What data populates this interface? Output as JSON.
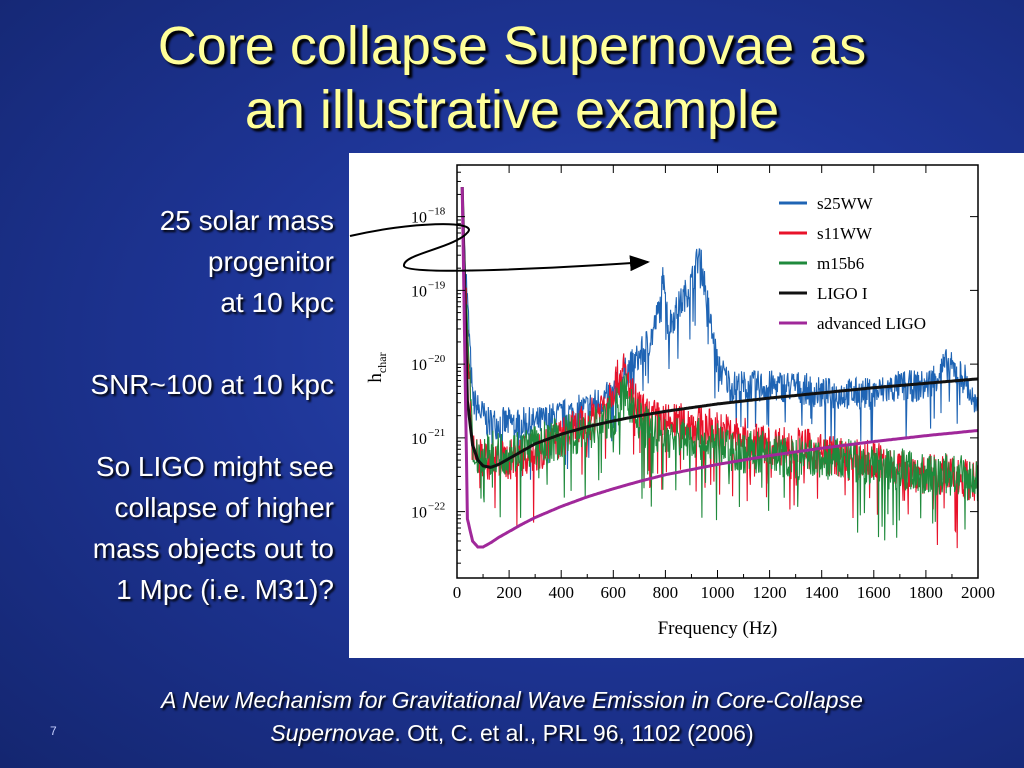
{
  "slide": {
    "title_line1": "Core collapse Supernovae as",
    "title_line2": "an illustrative example",
    "side_text": {
      "line1": "25 solar mass",
      "line2": "progenitor",
      "line3": "at 10 kpc",
      "snr": "SNR~100 at 10 kpc",
      "conclusion1": "So LIGO might see",
      "conclusion2": "collapse of higher",
      "conclusion3": "mass objects out to",
      "conclusion4": "1 Mpc (i.e. M31)?"
    },
    "citation_italic1": "A New Mechanism for Gravitational Wave Emission in Core-Collapse",
    "citation_italic2": "Supernovae",
    "citation_rest": ". Ott, C. et al., PRL 96, 1102 (2006)",
    "slide_number": "7"
  },
  "chart_data": {
    "type": "line",
    "xlabel": "Frequency (Hz)",
    "ylabel_main": "h",
    "ylabel_sub": "char",
    "xlim": [
      0,
      2000
    ],
    "ylim_log10": [
      -22.9,
      -17.3
    ],
    "log_y": true,
    "x_ticks": [
      0,
      200,
      400,
      600,
      800,
      1000,
      1200,
      1400,
      1600,
      1800,
      2000
    ],
    "y_ticks": [
      {
        "label_base": "10",
        "label_exp": "−18",
        "log": -18
      },
      {
        "label_base": "10",
        "label_exp": "−19",
        "log": -19
      },
      {
        "label_base": "10",
        "label_exp": "−20",
        "log": -20
      },
      {
        "label_base": "10",
        "label_exp": "−21",
        "log": -21
      },
      {
        "label_base": "10",
        "label_exp": "−22",
        "log": -22
      }
    ],
    "legend_position": "top-right",
    "series": [
      {
        "name": "s25WW",
        "color": "#1f64b4",
        "noisy": true,
        "noise": 0.22,
        "x": [
          20,
          60,
          120,
          200,
          300,
          400,
          500,
          600,
          650,
          700,
          750,
          780,
          795,
          810,
          840,
          870,
          900,
          930,
          950,
          980,
          1000,
          1050,
          1100,
          1200,
          1300,
          1400,
          1500,
          1600,
          1700,
          1800,
          1880,
          1950,
          2000
        ],
        "log_h": [
          -17.8,
          -20.5,
          -20.8,
          -20.8,
          -20.8,
          -20.7,
          -20.6,
          -20.4,
          -20.1,
          -19.9,
          -19.6,
          -19.2,
          -18.7,
          -19.5,
          -19.3,
          -19.1,
          -18.9,
          -18.5,
          -18.9,
          -19.6,
          -20.0,
          -20.3,
          -20.3,
          -20.3,
          -20.3,
          -20.4,
          -20.4,
          -20.4,
          -20.3,
          -20.3,
          -20.0,
          -20.2,
          -20.7
        ]
      },
      {
        "name": "s11WW",
        "color": "#e8122a",
        "noisy": true,
        "noise": 0.28,
        "x": [
          20,
          60,
          120,
          200,
          300,
          400,
          500,
          550,
          600,
          640,
          680,
          720,
          800,
          900,
          1000,
          1100,
          1200,
          1300,
          1400,
          1500,
          1600,
          1700,
          1800,
          1900,
          2000
        ],
        "log_h": [
          -17.8,
          -21.2,
          -21.3,
          -21.3,
          -21.2,
          -21.0,
          -20.8,
          -20.6,
          -20.3,
          -20.1,
          -20.5,
          -20.7,
          -20.8,
          -20.8,
          -20.9,
          -21.0,
          -21.1,
          -21.1,
          -21.2,
          -21.3,
          -21.3,
          -21.4,
          -21.5,
          -21.5,
          -21.6
        ]
      },
      {
        "name": "m15b6",
        "color": "#1f8a3c",
        "noisy": true,
        "noise": 0.3,
        "x": [
          20,
          60,
          120,
          200,
          300,
          400,
          500,
          600,
          650,
          700,
          800,
          900,
          1000,
          1100,
          1200,
          1300,
          1400,
          1500,
          1600,
          1700,
          1800,
          1900,
          2000
        ],
        "log_h": [
          -17.8,
          -21.2,
          -21.2,
          -21.2,
          -21.1,
          -21.0,
          -20.9,
          -20.7,
          -20.4,
          -20.8,
          -21.0,
          -21.0,
          -21.1,
          -21.2,
          -21.2,
          -21.3,
          -21.3,
          -21.3,
          -21.4,
          -21.4,
          -21.5,
          -21.5,
          -21.6
        ]
      },
      {
        "name": "LIGO  I",
        "color": "#111111",
        "noisy": false,
        "x": [
          20,
          40,
          60,
          80,
          100,
          130,
          160,
          200,
          250,
          300,
          400,
          500,
          600,
          700,
          800,
          900,
          1000,
          1200,
          1400,
          1600,
          1800,
          2000
        ],
        "log_h": [
          -17.6,
          -20.5,
          -21.1,
          -21.3,
          -21.38,
          -21.4,
          -21.36,
          -21.28,
          -21.18,
          -21.08,
          -20.95,
          -20.85,
          -20.77,
          -20.7,
          -20.64,
          -20.59,
          -20.54,
          -20.46,
          -20.39,
          -20.32,
          -20.26,
          -20.2
        ]
      },
      {
        "name": "advanced  LIGO",
        "color": "#a0289a",
        "noisy": false,
        "x": [
          20,
          40,
          60,
          80,
          100,
          130,
          160,
          200,
          250,
          300,
          400,
          500,
          600,
          700,
          800,
          900,
          1000,
          1200,
          1400,
          1600,
          1800,
          2000
        ],
        "log_h": [
          -17.6,
          -22.1,
          -22.4,
          -22.48,
          -22.48,
          -22.42,
          -22.35,
          -22.27,
          -22.17,
          -22.08,
          -21.93,
          -21.8,
          -21.69,
          -21.59,
          -21.5,
          -21.43,
          -21.36,
          -21.24,
          -21.14,
          -21.05,
          -20.97,
          -20.9
        ]
      }
    ]
  }
}
